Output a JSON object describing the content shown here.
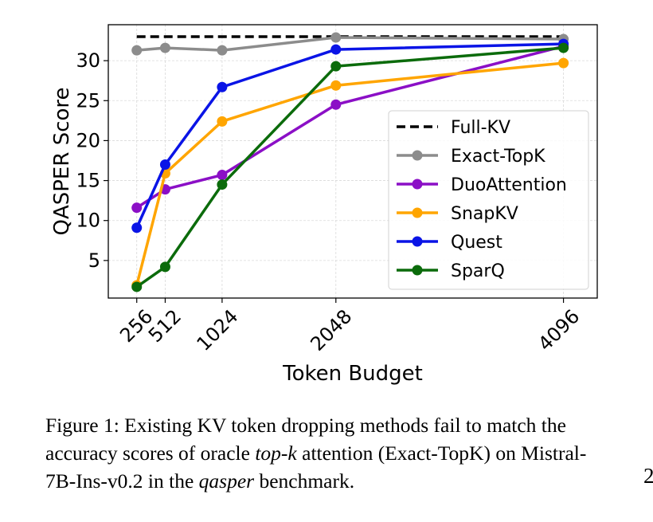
{
  "chart_data": {
    "type": "line",
    "xlabel": "Token Budget",
    "ylabel": "QASPER Score",
    "x": [
      256,
      512,
      1024,
      2048,
      4096
    ],
    "x_tick_labels": [
      "256",
      "512",
      "1024",
      "2048",
      "4096"
    ],
    "xlim": [
      0,
      4400
    ],
    "ylim": [
      0.3,
      34.5
    ],
    "y_ticks": [
      5,
      10,
      15,
      20,
      25,
      30
    ],
    "grid": true,
    "legend_position": "center-right",
    "series": [
      {
        "name": "Full-KV",
        "style": "dashed",
        "color": "#000000",
        "x": [
          256,
          4096
        ],
        "values": [
          33.0,
          33.0
        ]
      },
      {
        "name": "Exact-TopK",
        "style": "solid-marker",
        "color": "#8c8c8c",
        "values": [
          31.3,
          31.6,
          31.3,
          32.9,
          32.7
        ]
      },
      {
        "name": "DuoAttention",
        "style": "solid-marker",
        "color": "#8b0fc6",
        "values": [
          11.6,
          13.9,
          15.7,
          24.5,
          31.8
        ]
      },
      {
        "name": "SnapKV",
        "style": "solid-marker",
        "color": "#ffa500",
        "values": [
          1.9,
          15.9,
          22.4,
          26.9,
          29.7
        ]
      },
      {
        "name": "Quest",
        "style": "solid-marker",
        "color": "#0a14e6",
        "values": [
          9.1,
          17.0,
          26.7,
          31.4,
          32.1
        ]
      },
      {
        "name": "SparQ",
        "style": "solid-marker",
        "color": "#0b6b0b",
        "values": [
          1.7,
          4.2,
          14.5,
          29.3,
          31.6
        ]
      }
    ]
  },
  "caption": {
    "prefix": "Figure 1: Existing KV token dropping methods fail to match the accuracy scores of oracle ",
    "italic1": "top-k",
    "middle": " attention (Exact-TopK) on Mistral-7B-Ins-v0.2 in the ",
    "italic2": "qasper",
    "suffix": " benchmark."
  },
  "page_mark": "2"
}
